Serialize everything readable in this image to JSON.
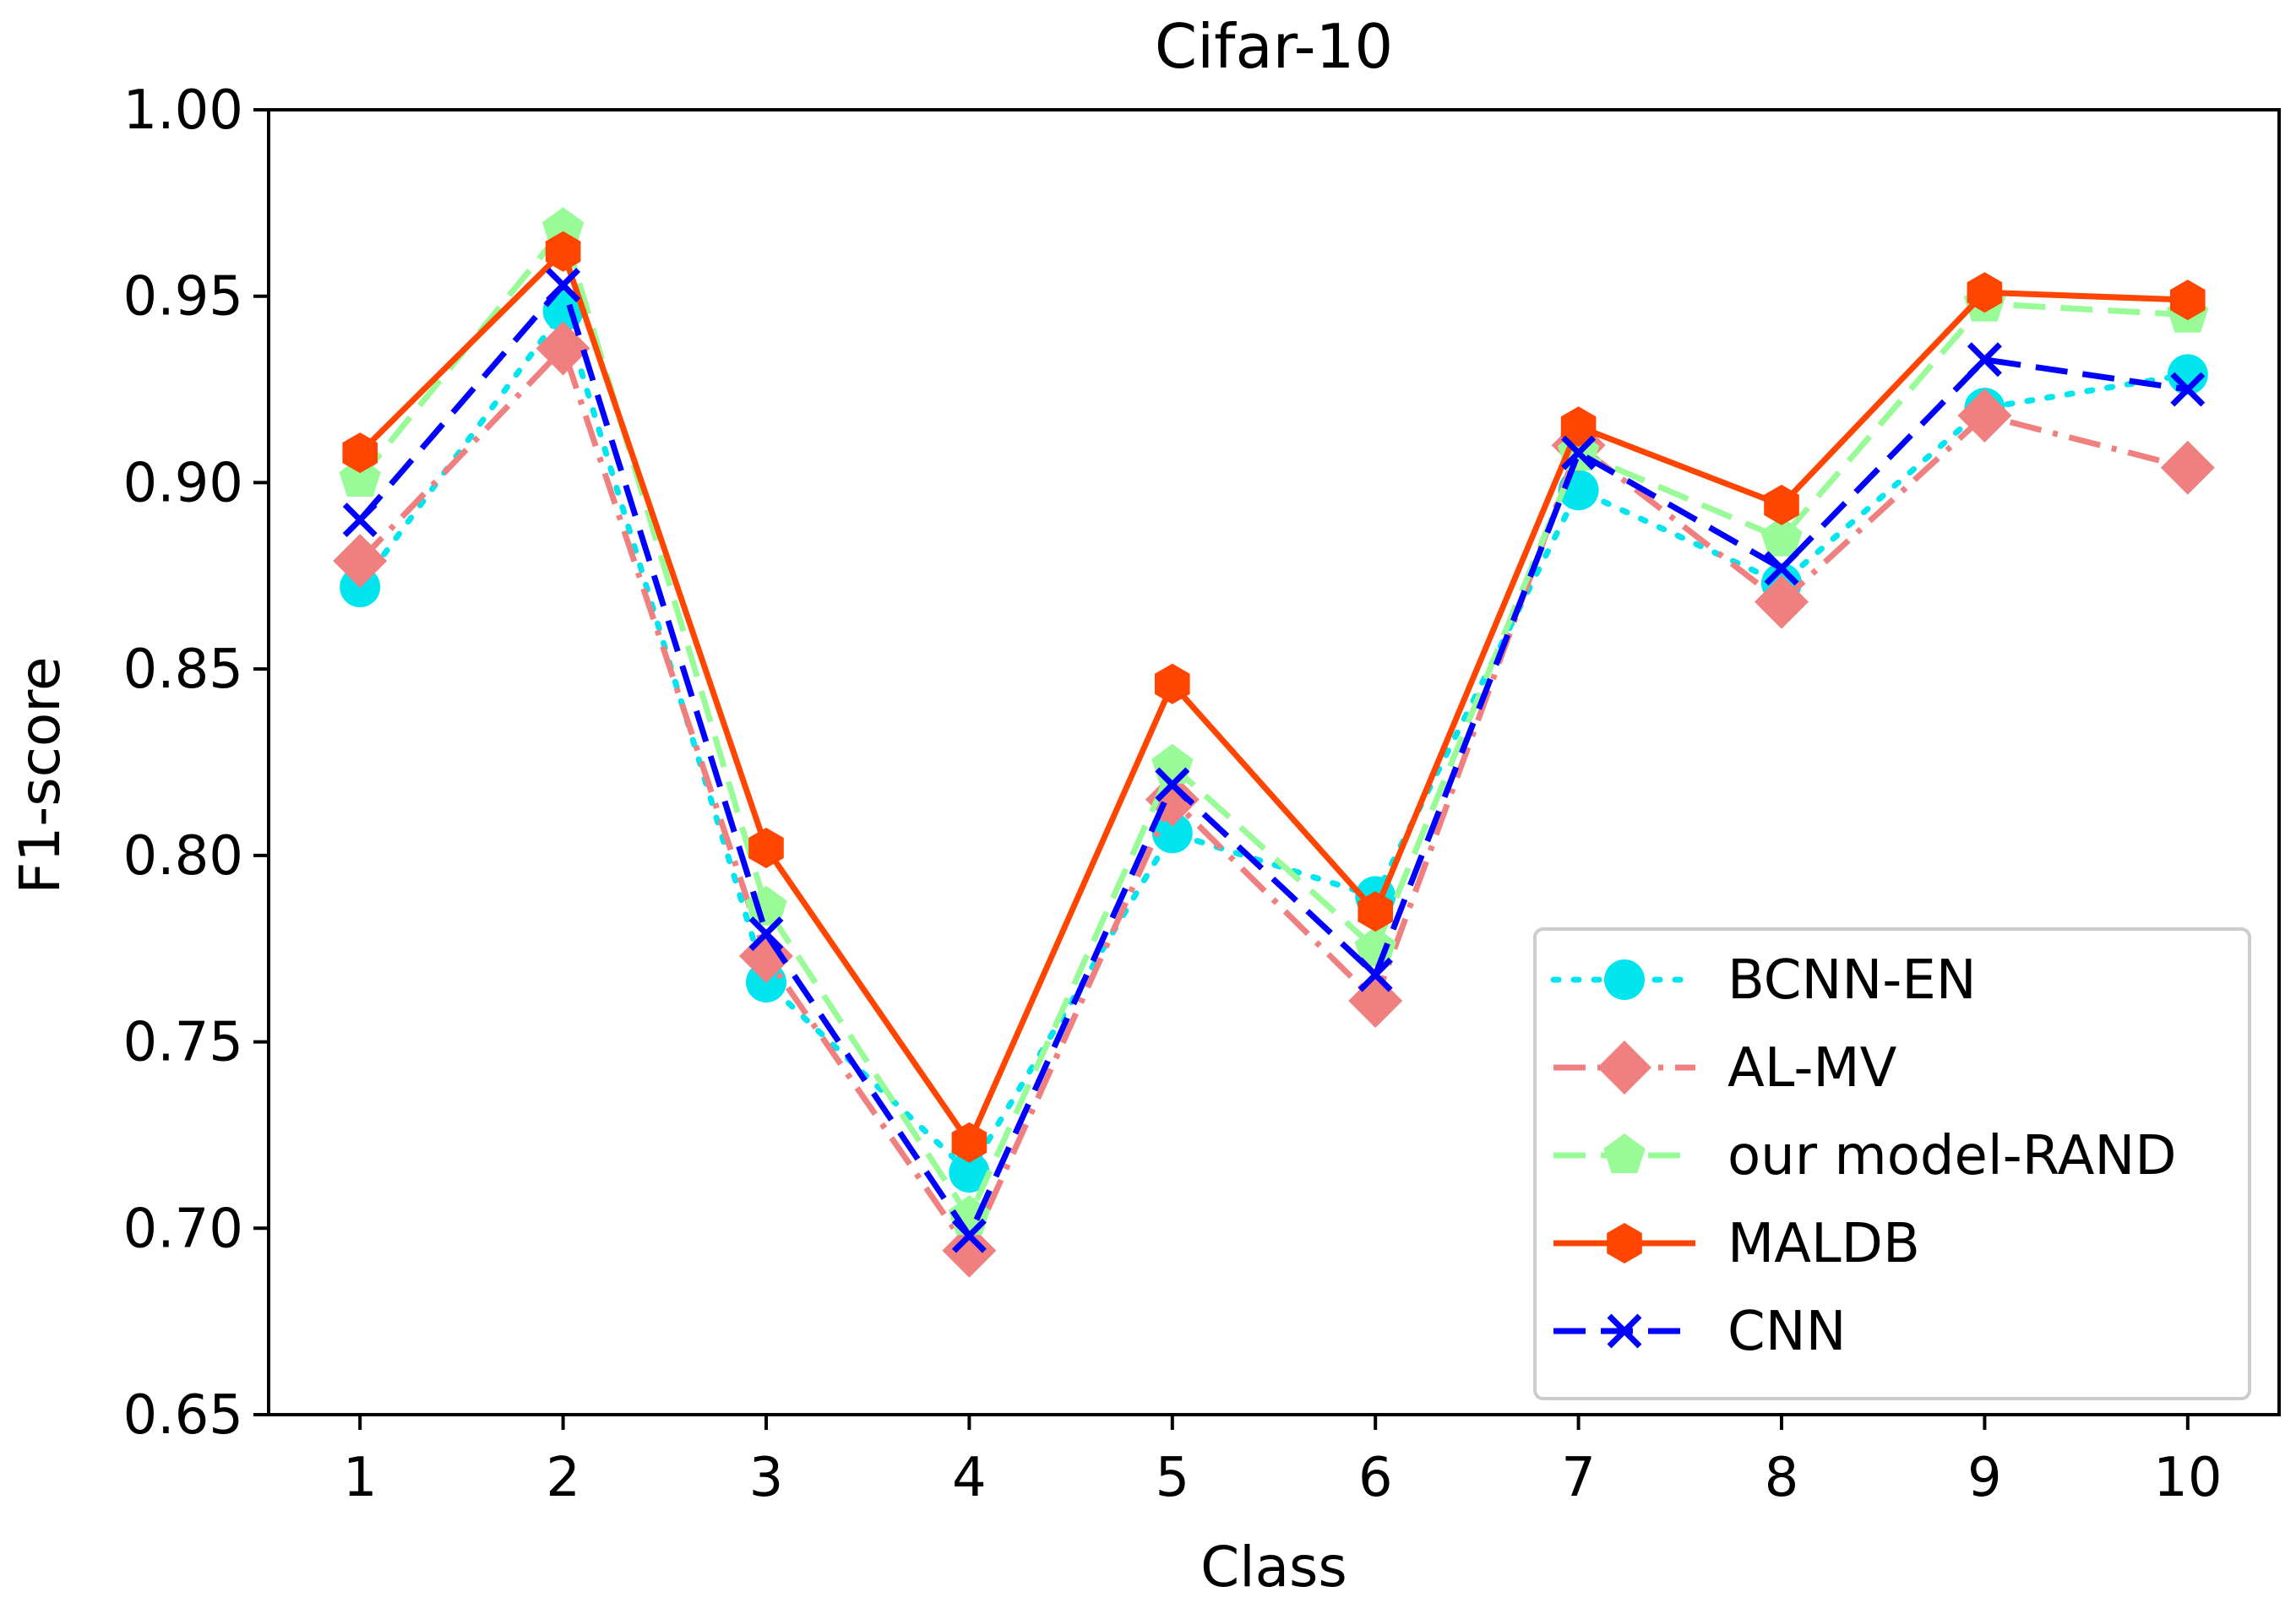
{
  "chart_data": {
    "type": "line",
    "title": "Cifar-10",
    "xlabel": "Class",
    "ylabel": "F1-score",
    "categories": [
      "1",
      "2",
      "3",
      "4",
      "5",
      "6",
      "7",
      "8",
      "9",
      "10"
    ],
    "x": [
      1,
      2,
      3,
      4,
      5,
      6,
      7,
      8,
      9,
      10
    ],
    "xlim": [
      0.55,
      10.45
    ],
    "ylim": [
      0.65,
      1.0
    ],
    "yticks": [
      0.65,
      0.7,
      0.75,
      0.8,
      0.85,
      0.9,
      0.95,
      1.0
    ],
    "ytick_labels": [
      "0.65",
      "0.70",
      "0.75",
      "0.80",
      "0.85",
      "0.90",
      "0.95",
      "1.00"
    ],
    "grid": false,
    "legend_position": "lower-right",
    "series": [
      {
        "name": "BCNN-EN",
        "values": [
          0.872,
          0.946,
          0.766,
          0.715,
          0.806,
          0.789,
          0.898,
          0.873,
          0.92,
          0.929
        ],
        "color": "#00e5ee",
        "line_style": "dotted",
        "marker": "circle"
      },
      {
        "name": "AL-MV",
        "values": [
          0.879,
          0.936,
          0.773,
          0.694,
          0.815,
          0.761,
          0.91,
          0.868,
          0.918,
          0.904
        ],
        "color": "#f08080",
        "line_style": "dash-dot",
        "marker": "diamond"
      },
      {
        "name": "our model-RAND",
        "values": [
          0.901,
          0.968,
          0.786,
          0.703,
          0.824,
          0.775,
          0.908,
          0.885,
          0.948,
          0.945
        ],
        "color": "#98fb98",
        "line_style": "dashed",
        "marker": "pentagon"
      },
      {
        "name": "MALDB",
        "values": [
          0.908,
          0.962,
          0.802,
          0.723,
          0.846,
          0.785,
          0.915,
          0.894,
          0.951,
          0.949
        ],
        "color": "#ff4500",
        "line_style": "solid",
        "marker": "hexagon"
      },
      {
        "name": "CNN",
        "values": [
          0.89,
          0.953,
          0.779,
          0.698,
          0.819,
          0.768,
          0.908,
          0.877,
          0.933,
          0.925
        ],
        "color": "#0000ff",
        "line_style": "dashed",
        "marker": "x"
      }
    ]
  }
}
